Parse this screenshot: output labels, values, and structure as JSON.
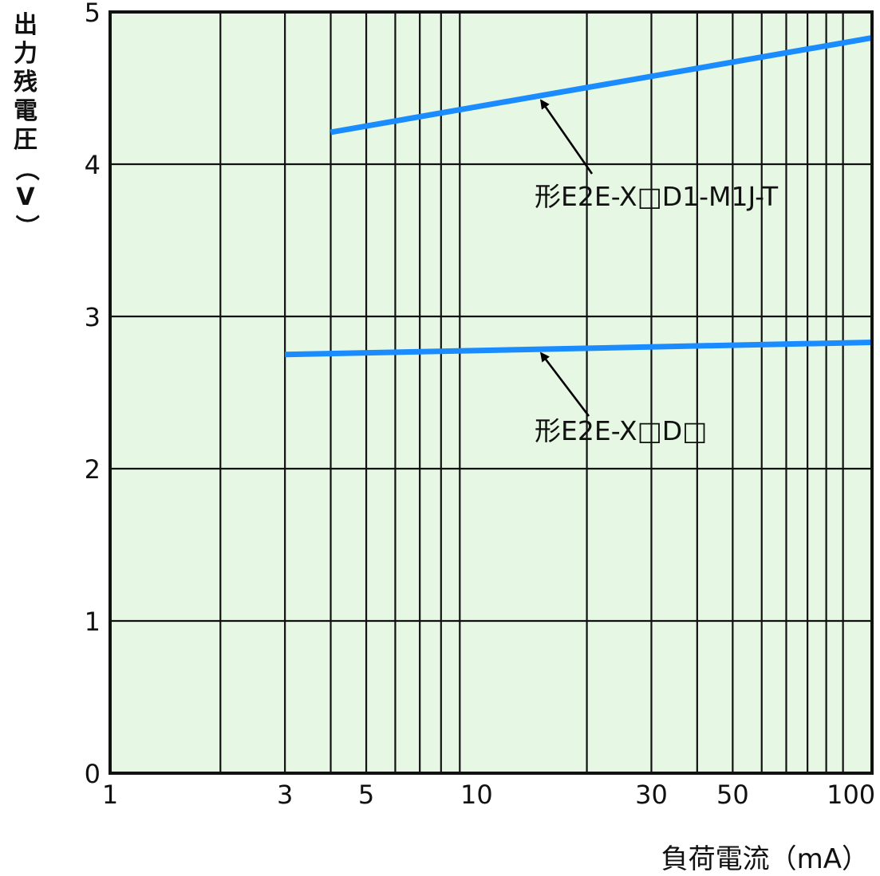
{
  "chart_data": {
    "type": "line",
    "title": "",
    "xlabel": "負荷電流（mA）",
    "ylabel": "出力残電圧（V）",
    "xscale": "log",
    "xlim": [
      1,
      120
    ],
    "ylim": [
      0,
      5
    ],
    "xticks": [
      1,
      3,
      5,
      10,
      30,
      50,
      100
    ],
    "xtick_labels": [
      "1",
      "3",
      "5",
      "10",
      "30",
      "50",
      "100"
    ],
    "yticks": [
      0,
      1,
      2,
      3,
      4,
      5
    ],
    "ytick_labels": [
      "0",
      "1",
      "2",
      "3",
      "4",
      "5"
    ],
    "minor_x_gridlines": [
      2,
      3,
      4,
      5,
      6,
      7,
      8,
      9,
      20,
      30,
      40,
      50,
      60,
      70,
      80,
      90,
      100
    ],
    "grid": true,
    "background_color": "#e6f8e4",
    "line_color": "#1a8cff",
    "series": [
      {
        "name": "形E2E-X□D1-M1J-T",
        "x": [
          4,
          120
        ],
        "y": [
          4.21,
          4.83
        ]
      },
      {
        "name": "形E2E-X□D□",
        "x": [
          3,
          120
        ],
        "y": [
          2.75,
          2.83
        ]
      }
    ],
    "annotations": [
      {
        "text": "形E2E-X□D1-M1J-T",
        "series": 0,
        "points_to_x": 15,
        "points_to_y": 4.45
      },
      {
        "text": "形E2E-X□D□",
        "series": 1,
        "points_to_x": 15,
        "points_to_y": 2.79
      }
    ]
  }
}
